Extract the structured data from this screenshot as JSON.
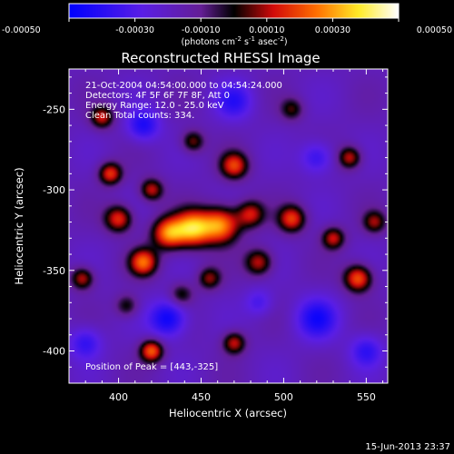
{
  "chart_data": {
    "type": "heatmap",
    "title": "Reconstructed RHESSI Image",
    "xlabel": "Heliocentric X (arcsec)",
    "ylabel": "Heliocentric Y (arcsec)",
    "xlim": [
      370,
      563
    ],
    "ylim": [
      -420,
      -225
    ],
    "x_ticks": [
      400,
      450,
      500,
      550
    ],
    "y_ticks": [
      -250,
      -300,
      -350,
      -400
    ],
    "colorbar": {
      "range": [
        -0.0005,
        0.0005
      ],
      "ticks": [
        "-0.00050",
        "-0.00030",
        "-0.00010",
        "0.00010",
        "0.00030",
        "0.00050"
      ],
      "unit_label": "(photons cm",
      "unit_sup1": "-2",
      "unit_mid1": " s",
      "unit_sup2": "-1",
      "unit_mid2": " asec",
      "unit_sup3": "-2",
      "unit_end": ")"
    },
    "annotations": [
      "21-Oct-2004 04:54:00.000 to 04:54:24.000",
      "Detectors: 4F 5F 6F 7F 8F, Att 0",
      "Energy Range: 12.0 - 25.0 keV",
      "Clean     Total counts: 334."
    ],
    "peak_label": "Position of Peak = [443,-325]",
    "sources": [
      {
        "x": 445,
        "y": -324,
        "amp": 0.0005,
        "s": 8
      },
      {
        "x": 462,
        "y": -322,
        "amp": 0.00045,
        "s": 8
      },
      {
        "x": 430,
        "y": -327,
        "amp": 0.00042,
        "s": 7
      },
      {
        "x": 415,
        "y": -345,
        "amp": 0.0004,
        "s": 6
      },
      {
        "x": 400,
        "y": -318,
        "amp": 0.00035,
        "s": 6
      },
      {
        "x": 395,
        "y": -290,
        "amp": 0.00035,
        "s": 5
      },
      {
        "x": 420,
        "y": -300,
        "amp": 0.0003,
        "s": 5
      },
      {
        "x": 470,
        "y": -285,
        "amp": 0.00035,
        "s": 6
      },
      {
        "x": 480,
        "y": -315,
        "amp": 0.0003,
        "s": 6
      },
      {
        "x": 505,
        "y": -318,
        "amp": 0.00035,
        "s": 6
      },
      {
        "x": 485,
        "y": -345,
        "amp": 0.0003,
        "s": 6
      },
      {
        "x": 530,
        "y": -330,
        "amp": 0.0003,
        "s": 5
      },
      {
        "x": 540,
        "y": -280,
        "amp": 0.0003,
        "s": 5
      },
      {
        "x": 545,
        "y": -355,
        "amp": 0.0004,
        "s": 6
      },
      {
        "x": 555,
        "y": -320,
        "amp": 0.00025,
        "s": 5
      },
      {
        "x": 378,
        "y": -355,
        "amp": 0.0003,
        "s": 5
      },
      {
        "x": 390,
        "y": -255,
        "amp": 0.0003,
        "s": 5
      },
      {
        "x": 445,
        "y": -270,
        "amp": 0.00025,
        "s": 5
      },
      {
        "x": 420,
        "y": -400,
        "amp": 0.0004,
        "s": 5
      },
      {
        "x": 470,
        "y": -395,
        "amp": 0.0003,
        "s": 5
      },
      {
        "x": 505,
        "y": -250,
        "amp": 0.0002,
        "s": 5
      },
      {
        "x": 405,
        "y": -372,
        "amp": 0.0002,
        "s": 5
      },
      {
        "x": 438,
        "y": -365,
        "amp": 0.0002,
        "s": 5
      },
      {
        "x": 455,
        "y": -355,
        "amp": 0.00025,
        "s": 5
      },
      {
        "x": 415,
        "y": -260,
        "amp": -0.00025,
        "s": 7
      },
      {
        "x": 430,
        "y": -380,
        "amp": -0.0003,
        "s": 8
      },
      {
        "x": 520,
        "y": -380,
        "amp": -0.00025,
        "s": 9
      },
      {
        "x": 550,
        "y": -400,
        "amp": -0.0002,
        "s": 7
      },
      {
        "x": 380,
        "y": -395,
        "amp": -0.0002,
        "s": 7
      },
      {
        "x": 520,
        "y": -280,
        "amp": -0.0002,
        "s": 7
      },
      {
        "x": 470,
        "y": -245,
        "amp": -0.0002,
        "s": 8
      },
      {
        "x": 485,
        "y": -370,
        "amp": -0.00015,
        "s": 6
      }
    ]
  },
  "timestamp": "15-Jun-2013 23:37"
}
